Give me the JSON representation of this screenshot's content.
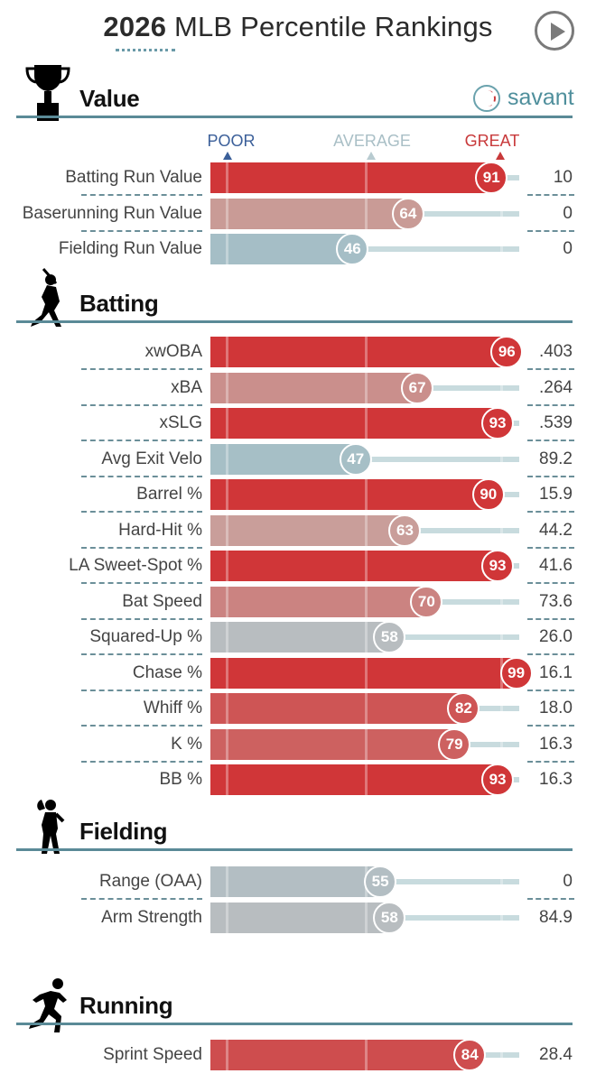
{
  "title": {
    "year": "2026",
    "rest": "MLB Percentile Rankings"
  },
  "brand": {
    "logo_text": "savant",
    "colors": {
      "great": "#d0393b",
      "poor": "#3b6aa8",
      "average": "#a9c0c7",
      "section_line": "#5a8a97"
    }
  },
  "scale": {
    "poor": "POOR",
    "average": "AVERAGE",
    "great": "GREAT"
  },
  "chart_data": {
    "type": "bar",
    "xlim": [
      0,
      100
    ],
    "sections": [
      {
        "title": "Value",
        "icon": "trophy-icon",
        "metrics": [
          {
            "name": "Batting Run Value",
            "percentile": 91,
            "value": "10"
          },
          {
            "name": "Baserunning Run Value",
            "percentile": 64,
            "value": "0"
          },
          {
            "name": "Fielding Run Value",
            "percentile": 46,
            "value": "0"
          }
        ]
      },
      {
        "title": "Batting",
        "icon": "batter-icon",
        "metrics": [
          {
            "name": "xwOBA",
            "percentile": 96,
            "value": ".403"
          },
          {
            "name": "xBA",
            "percentile": 67,
            "value": ".264"
          },
          {
            "name": "xSLG",
            "percentile": 93,
            "value": ".539"
          },
          {
            "name": "Avg Exit Velo",
            "percentile": 47,
            "value": "89.2"
          },
          {
            "name": "Barrel %",
            "percentile": 90,
            "value": "15.9"
          },
          {
            "name": "Hard-Hit %",
            "percentile": 63,
            "value": "44.2"
          },
          {
            "name": "LA Sweet-Spot %",
            "percentile": 93,
            "value": "41.6"
          },
          {
            "name": "Bat Speed",
            "percentile": 70,
            "value": "73.6"
          },
          {
            "name": "Squared-Up %",
            "percentile": 58,
            "value": "26.0"
          },
          {
            "name": "Chase %",
            "percentile": 99,
            "value": "16.1"
          },
          {
            "name": "Whiff %",
            "percentile": 82,
            "value": "18.0"
          },
          {
            "name": "K %",
            "percentile": 79,
            "value": "16.3"
          },
          {
            "name": "BB %",
            "percentile": 93,
            "value": "16.3"
          }
        ]
      },
      {
        "title": "Fielding",
        "icon": "fielder-icon",
        "metrics": [
          {
            "name": "Range (OAA)",
            "percentile": 55,
            "value": "0"
          },
          {
            "name": "Arm Strength",
            "percentile": 58,
            "value": "84.9"
          }
        ]
      },
      {
        "title": "Running",
        "icon": "runner-icon",
        "metrics": [
          {
            "name": "Sprint Speed",
            "percentile": 84,
            "value": "28.4"
          }
        ]
      }
    ]
  }
}
